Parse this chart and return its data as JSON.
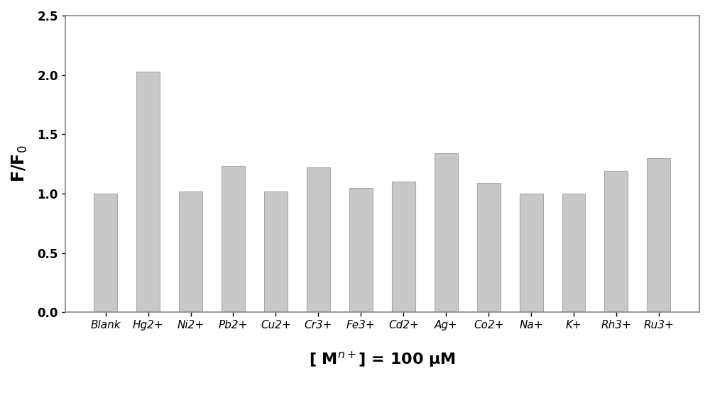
{
  "categories": [
    "Blank",
    "Hg2+",
    "Ni2+",
    "Pb2+",
    "Cu2+",
    "Cr3+",
    "Fe3+",
    "Cd2+",
    "Ag+",
    "Co2+",
    "Na+",
    "K+",
    "Rh3+",
    "Ru3+"
  ],
  "values": [
    1.0,
    2.03,
    1.02,
    1.23,
    1.02,
    1.22,
    1.05,
    1.1,
    1.34,
    1.09,
    1.0,
    1.0,
    1.19,
    1.3
  ],
  "bar_color": "#c8c8c8",
  "bar_edgecolor": "#aaaaaa",
  "ylabel": "F/F$_0$",
  "xlabel": "[ M$^{n+}$] = 100 μM",
  "ylim": [
    0.0,
    2.5
  ],
  "yticks": [
    0.0,
    0.5,
    1.0,
    1.5,
    2.0,
    2.5
  ],
  "background_color": "#ffffff",
  "ylabel_fontsize": 17,
  "xlabel_fontsize": 16,
  "tick_fontsize": 12,
  "xtick_fontsize": 11,
  "bar_width": 0.55,
  "spine_color": "#888888",
  "spine_linewidth": 1.2
}
